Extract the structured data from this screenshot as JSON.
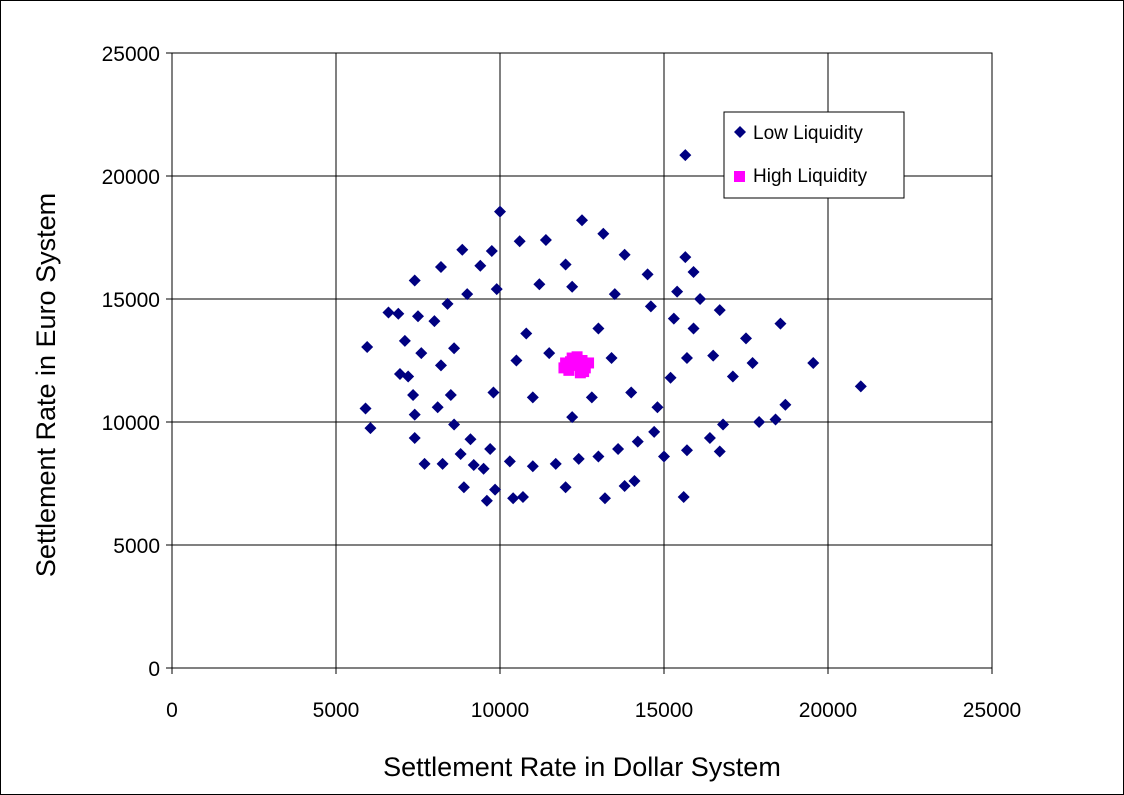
{
  "chart_data": {
    "type": "scatter",
    "title": "",
    "xlabel": "Settlement Rate in Dollar System",
    "ylabel": "Settlement Rate in Euro System",
    "xlim": [
      0,
      25000
    ],
    "ylim": [
      0,
      25000
    ],
    "xticks": [
      "0",
      "5000",
      "10000",
      "15000",
      "20000",
      "25000"
    ],
    "yticks": [
      "0",
      "5000",
      "10000",
      "15000",
      "20000",
      "25000"
    ],
    "grid": true,
    "legend_position": "top-right",
    "series": [
      {
        "name": "Low Liquidity",
        "marker": "diamond",
        "color": "#000080",
        "distribution": "dense cloud centred near (12000, 11800), roughly 9000–15000 on both axes",
        "points": [
          [
            15650,
            20850
          ],
          [
            10000,
            18550
          ],
          [
            12500,
            18200
          ],
          [
            13150,
            17650
          ],
          [
            9750,
            16950
          ],
          [
            8850,
            17000
          ],
          [
            10600,
            17350
          ],
          [
            11400,
            17400
          ],
          [
            12000,
            16400
          ],
          [
            13800,
            16800
          ],
          [
            15650,
            16700
          ],
          [
            15900,
            16100
          ],
          [
            8200,
            16300
          ],
          [
            9400,
            16350
          ],
          [
            14500,
            16000
          ],
          [
            7400,
            15750
          ],
          [
            6900,
            14400
          ],
          [
            6600,
            14450
          ],
          [
            7500,
            14300
          ],
          [
            5950,
            13050
          ],
          [
            7100,
            13300
          ],
          [
            7600,
            12800
          ],
          [
            7200,
            11850
          ],
          [
            6950,
            11950
          ],
          [
            7350,
            11100
          ],
          [
            5900,
            10550
          ],
          [
            6050,
            9750
          ],
          [
            7400,
            10300
          ],
          [
            7400,
            9350
          ],
          [
            7700,
            8300
          ],
          [
            8250,
            8300
          ],
          [
            8800,
            8700
          ],
          [
            9200,
            8250
          ],
          [
            9500,
            8100
          ],
          [
            9850,
            7250
          ],
          [
            8900,
            7350
          ],
          [
            9600,
            6800
          ],
          [
            10400,
            6900
          ],
          [
            10700,
            6950
          ],
          [
            12000,
            7350
          ],
          [
            13200,
            6900
          ],
          [
            13800,
            7400
          ],
          [
            14100,
            7600
          ],
          [
            15600,
            6950
          ],
          [
            15000,
            8600
          ],
          [
            15700,
            8850
          ],
          [
            16700,
            8800
          ],
          [
            16400,
            9350
          ],
          [
            16800,
            9900
          ],
          [
            17900,
            10000
          ],
          [
            18400,
            10100
          ],
          [
            18700,
            10700
          ],
          [
            21000,
            11450
          ],
          [
            19550,
            12400
          ],
          [
            17700,
            12400
          ],
          [
            17500,
            13400
          ],
          [
            17100,
            11850
          ],
          [
            16500,
            12700
          ],
          [
            16700,
            14550
          ],
          [
            16100,
            15000
          ],
          [
            15400,
            15300
          ],
          [
            18550,
            14000
          ],
          [
            14800,
            10600
          ],
          [
            15200,
            11800
          ],
          [
            15700,
            12600
          ],
          [
            15900,
            13800
          ],
          [
            15300,
            14200
          ],
          [
            14600,
            14700
          ],
          [
            13500,
            15200
          ],
          [
            12200,
            15500
          ],
          [
            11200,
            15600
          ],
          [
            9900,
            15400
          ],
          [
            9000,
            15200
          ],
          [
            8400,
            14800
          ],
          [
            8000,
            14100
          ],
          [
            8600,
            13000
          ],
          [
            8200,
            12300
          ],
          [
            8500,
            11100
          ],
          [
            8100,
            10600
          ],
          [
            8600,
            9900
          ],
          [
            9100,
            9300
          ],
          [
            9700,
            8900
          ],
          [
            10300,
            8400
          ],
          [
            11000,
            8200
          ],
          [
            11700,
            8300
          ],
          [
            12400,
            8500
          ],
          [
            13000,
            8600
          ],
          [
            13600,
            8900
          ],
          [
            14200,
            9200
          ],
          [
            14700,
            9600
          ],
          [
            10500,
            12500
          ],
          [
            11000,
            11000
          ],
          [
            11500,
            12800
          ],
          [
            12800,
            11000
          ],
          [
            13400,
            12600
          ],
          [
            10800,
            13600
          ],
          [
            13000,
            13800
          ],
          [
            14000,
            11200
          ],
          [
            9800,
            11200
          ],
          [
            12200,
            10200
          ]
        ]
      },
      {
        "name": "High Liquidity",
        "marker": "square",
        "color": "#ff00ff",
        "distribution": "tight cluster near (12300, 12300), roughly 11950–12750 by 11950–12700",
        "points": [
          [
            12300,
            12300
          ],
          [
            12100,
            12100
          ],
          [
            12500,
            12500
          ],
          [
            12000,
            12400
          ],
          [
            12600,
            12200
          ],
          [
            12200,
            12600
          ],
          [
            12450,
            12000
          ],
          [
            12150,
            12450
          ],
          [
            12700,
            12400
          ],
          [
            11950,
            12200
          ],
          [
            12350,
            12650
          ],
          [
            12550,
            12050
          ]
        ]
      }
    ]
  }
}
